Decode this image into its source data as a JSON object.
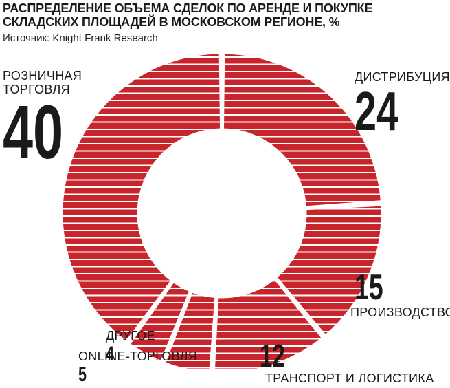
{
  "title_line1": "РАСПРЕДЕЛЕНИЕ ОБЪЕМА СДЕЛОК ПО АРЕНДЕ И ПОКУПКЕ",
  "title_line2": "СКЛАДСКИХ ПЛОЩАДЕЙ В МОСКОВСКОМ РЕГИОНЕ, %",
  "source": "Источник: Knight Frank Research",
  "colors": {
    "slice": "#c8242b",
    "stripe": "#ffffff",
    "text": "#1a1a1a"
  },
  "chart_data": {
    "type": "pie",
    "style": "donut",
    "title": "РАСПРЕДЕЛЕНИЕ ОБЪЕМА СДЕЛОК ПО АРЕНДЕ И ПОКУПКЕ СКЛАДСКИХ ПЛОЩАДЕЙ В МОСКОВСКОМ РЕГИОНЕ, %",
    "unit": "%",
    "slices": [
      {
        "label": "ДИСТРИБУЦИЯ",
        "value": 24
      },
      {
        "label": "ПРОИЗВОДСТВО",
        "value": 15
      },
      {
        "label": "ТРАНСПОРТ И ЛОГИСТИКА",
        "value": 12
      },
      {
        "label": "ONLINE-ТОРГОВЛЯ",
        "value": 5
      },
      {
        "label": "ДРУГОЕ",
        "value": 4
      },
      {
        "label_line1": "РОЗНИЧНАЯ",
        "label_line2": "ТОРГОВЛЯ",
        "value": 40
      }
    ]
  }
}
